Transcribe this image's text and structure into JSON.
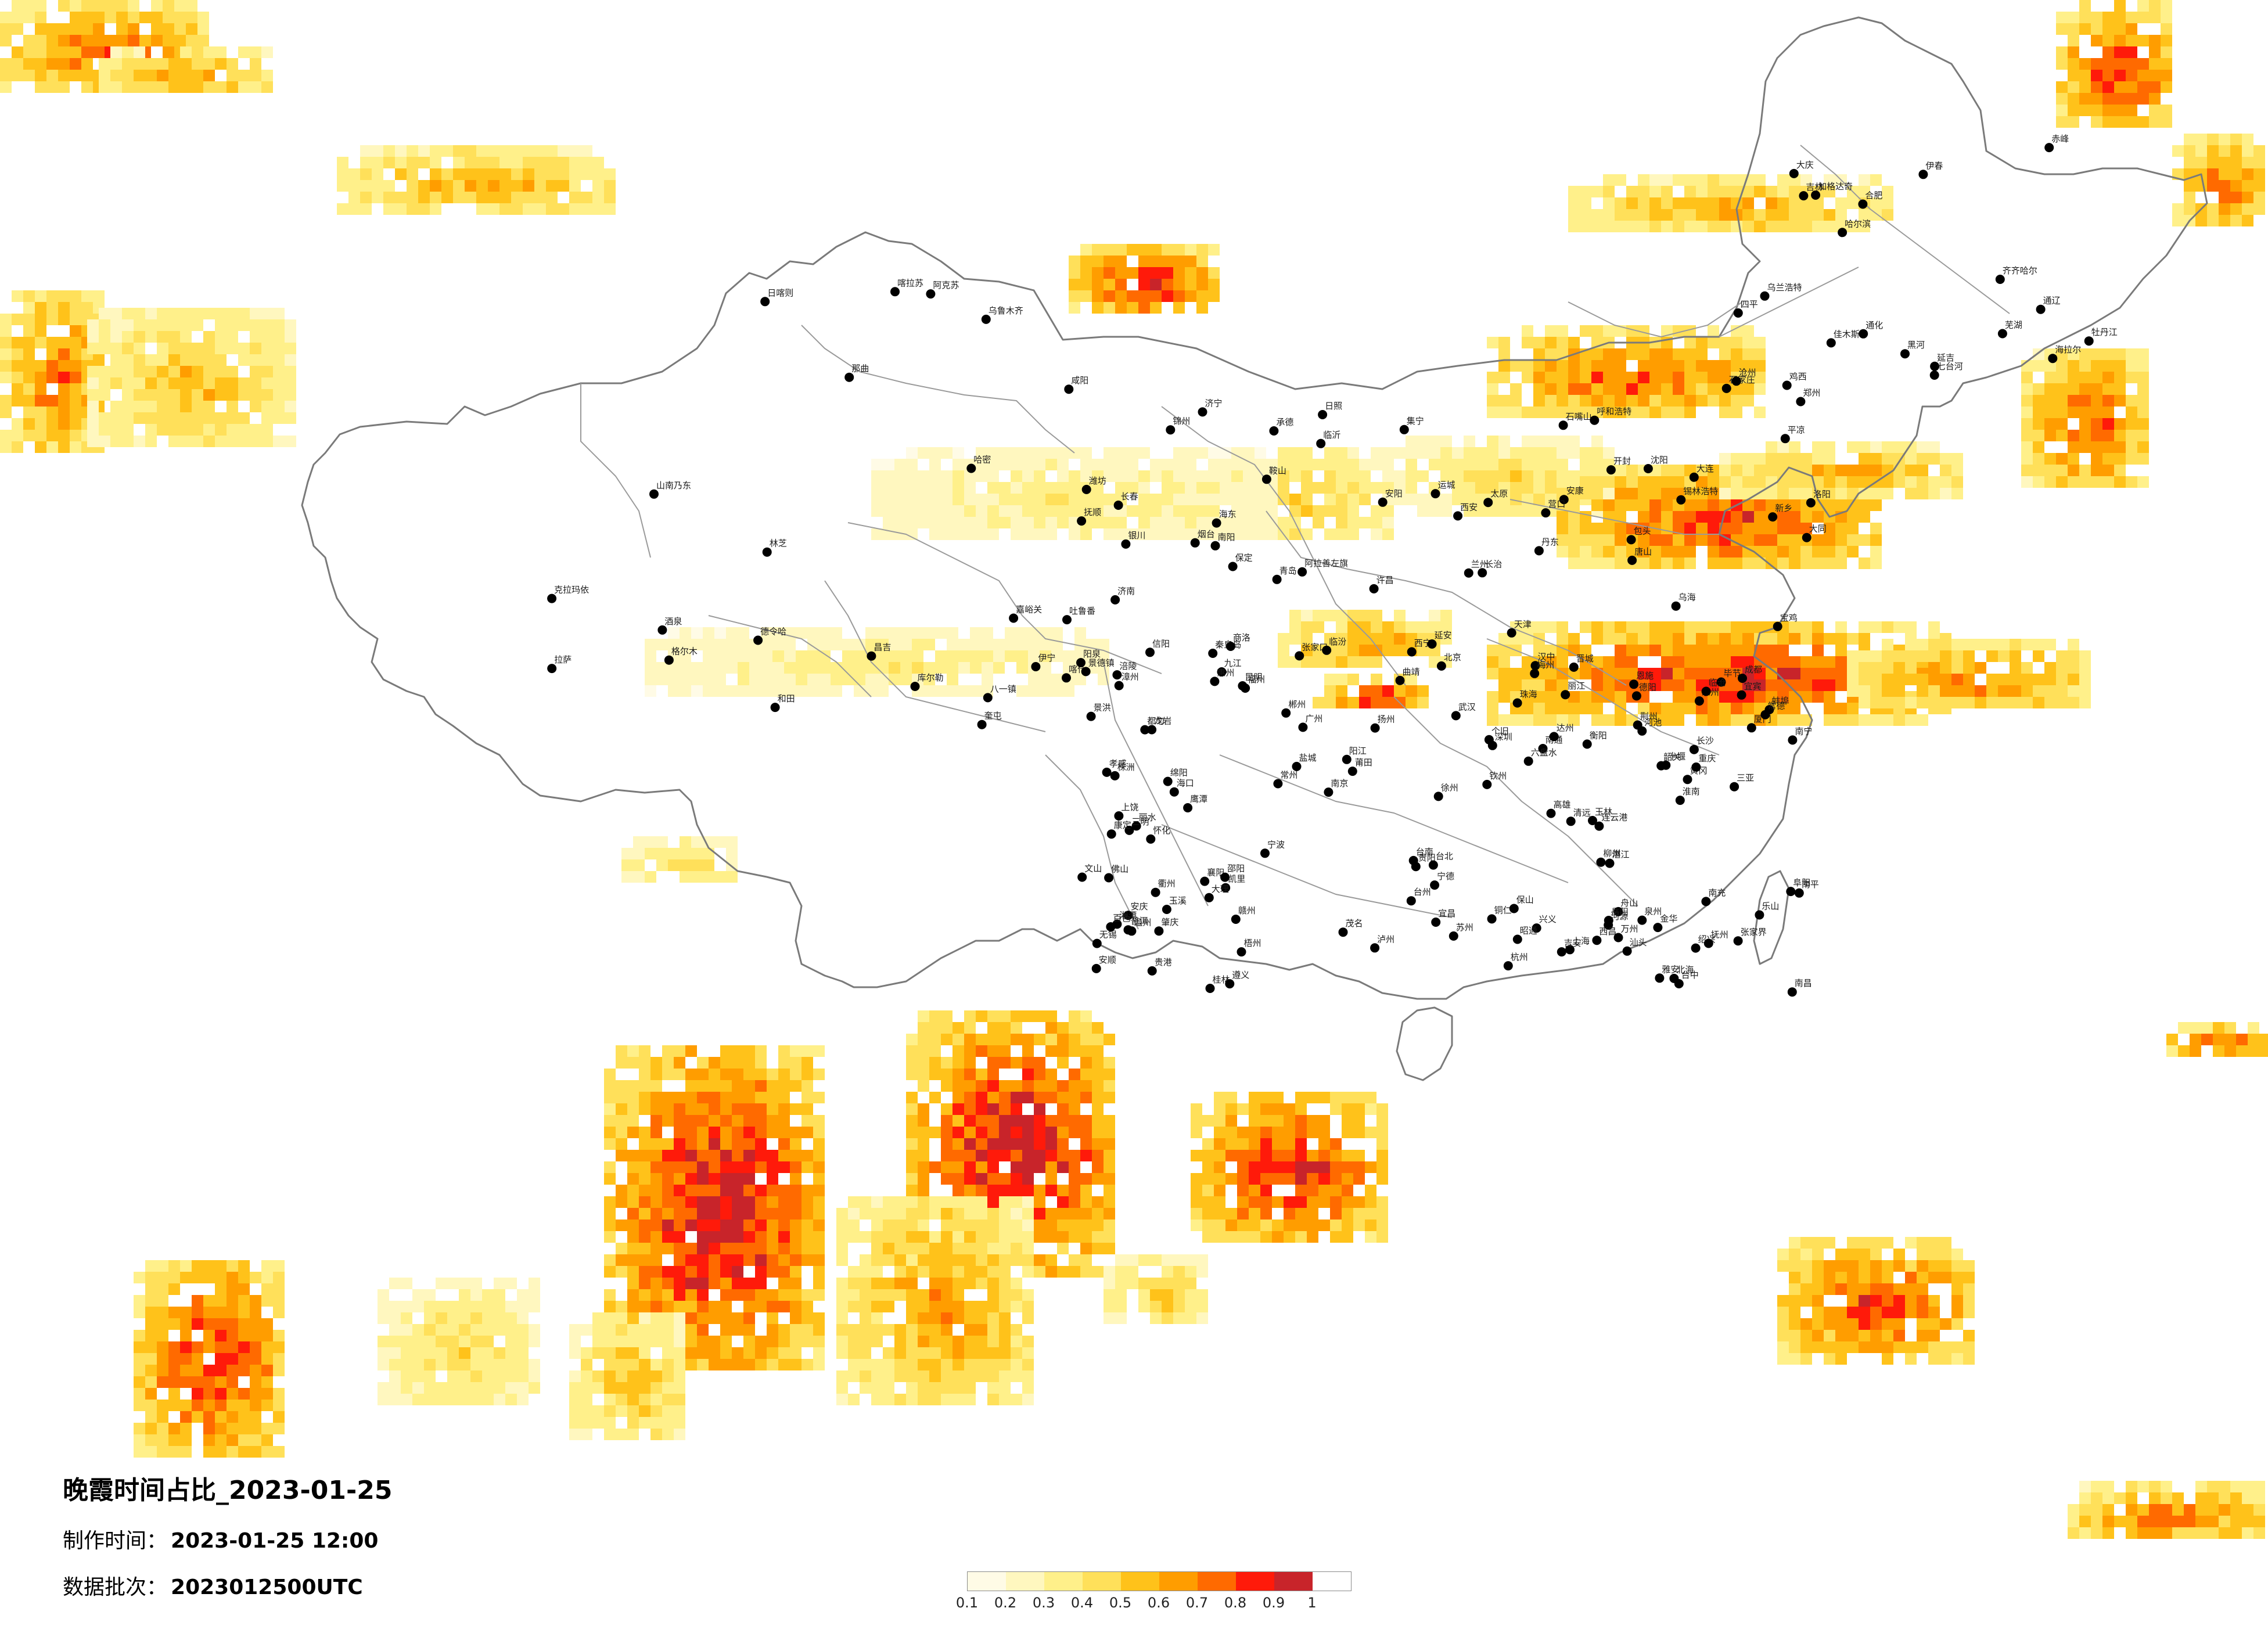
{
  "title": "晚霞时间占比_2023-01-25",
  "production_time": {
    "label": "制作时间：",
    "value": "2023-01-25 12:00"
  },
  "data_batch": {
    "label": "数据批次：",
    "value": "2023012500UTC"
  },
  "legend": {
    "ticks": [
      "0.1",
      "0.2",
      "0.3",
      "0.4",
      "0.5",
      "0.6",
      "0.7",
      "0.8",
      "0.9",
      "1"
    ],
    "colors": [
      "#fffbe6",
      "#fff7bf",
      "#fff08a",
      "#ffe05a",
      "#ffc21a",
      "#ff9d00",
      "#ff6a00",
      "#ff1a0a",
      "#c8242a"
    ]
  },
  "colors": {
    "map_boundary": "#7a7a7a",
    "city_dot": "#000000",
    "background": "#ffffff"
  },
  "cities": [
    "克拉玛依",
    "奎屯",
    "伊宁",
    "昌吉",
    "乌鲁木齐",
    "吐鲁番",
    "哈密",
    "库尔勒",
    "阿克苏",
    "喀什",
    "和田",
    "喀拉苏",
    "拉萨",
    "山南乃东",
    "日喀则",
    "八一镇",
    "林芝",
    "那曲",
    "格尔木",
    "嘉峪关",
    "酒泉",
    "德令哈",
    "西宁",
    "海东",
    "兰州",
    "平凉",
    "银川",
    "石嘴山",
    "阿拉善左旗",
    "乌海",
    "包头",
    "呼和浩特",
    "锡林浩特",
    "集宁",
    "张家口",
    "北京",
    "天津",
    "石家庄",
    "保定",
    "沧州",
    "唐山",
    "秦皇岛",
    "承德",
    "太原",
    "大同",
    "阳泉",
    "长治",
    "晋城",
    "临汾",
    "运城",
    "郑州",
    "开封",
    "洛阳",
    "安阳",
    "新乡",
    "许昌",
    "南阳",
    "信阳",
    "济南",
    "青岛",
    "烟台",
    "潍坊",
    "临沂",
    "济宁",
    "日照",
    "西安",
    "宝鸡",
    "咸阳",
    "延安",
    "汉中",
    "安康",
    "商洛",
    "沈阳",
    "大连",
    "鞍山",
    "抚顺",
    "丹东",
    "锦州",
    "营口",
    "长春",
    "吉林",
    "四平",
    "通化",
    "延吉",
    "哈尔滨",
    "齐齐哈尔",
    "大庆",
    "牡丹江",
    "佳木斯",
    "鸡西",
    "七台河",
    "伊春",
    "黑河",
    "海拉尔",
    "加格达奇",
    "乌兰浩特",
    "通辽",
    "赤峰",
    "合肥",
    "芜湖",
    "蚌埠",
    "淮南",
    "安庆",
    "阜阳",
    "南京",
    "徐州",
    "连云港",
    "盐城",
    "扬州",
    "南通",
    "苏州",
    "无锡",
    "常州",
    "上海",
    "杭州",
    "宁波",
    "温州",
    "绍兴",
    "金华",
    "衢州",
    "台州",
    "丽水",
    "舟山",
    "南昌",
    "九江",
    "景德镇",
    "上饶",
    "鹰潭",
    "抚州",
    "吉安",
    "赣州",
    "福州",
    "厦门",
    "泉州",
    "漳州",
    "莆田",
    "三明",
    "南平",
    "龙岩",
    "宁德",
    "武汉",
    "宜昌",
    "襄阳",
    "荆州",
    "十堰",
    "恩施",
    "黄冈",
    "孝感",
    "长沙",
    "株洲",
    "湘潭",
    "衡阳",
    "岳阳",
    "常德",
    "怀化",
    "张家界",
    "邵阳",
    "郴州",
    "永州",
    "广州",
    "深圳",
    "珠海",
    "汕头",
    "佛山",
    "湛江",
    "茂名",
    "肇庆",
    "惠州",
    "梅州",
    "韶关",
    "河源",
    "清远",
    "阳江",
    "南宁",
    "桂林",
    "柳州",
    "梧州",
    "北海",
    "玉林",
    "百色",
    "河池",
    "钦州",
    "贵港",
    "贵阳",
    "遵义",
    "安顺",
    "六盘水",
    "都匀",
    "凯里",
    "铜仁",
    "毕节",
    "兴义",
    "昆明",
    "曲靖",
    "玉溪",
    "大理",
    "丽江",
    "保山",
    "临沧",
    "普洱",
    "景洪",
    "个旧",
    "文山",
    "昭通",
    "成都",
    "绵阳",
    "德阳",
    "南充",
    "宜宾",
    "泸州",
    "达州",
    "乐山",
    "雅安",
    "西昌",
    "康定",
    "重庆",
    "万州",
    "涪陵",
    "海口",
    "三亚",
    "台北",
    "台中",
    "台南",
    "高雄"
  ]
}
